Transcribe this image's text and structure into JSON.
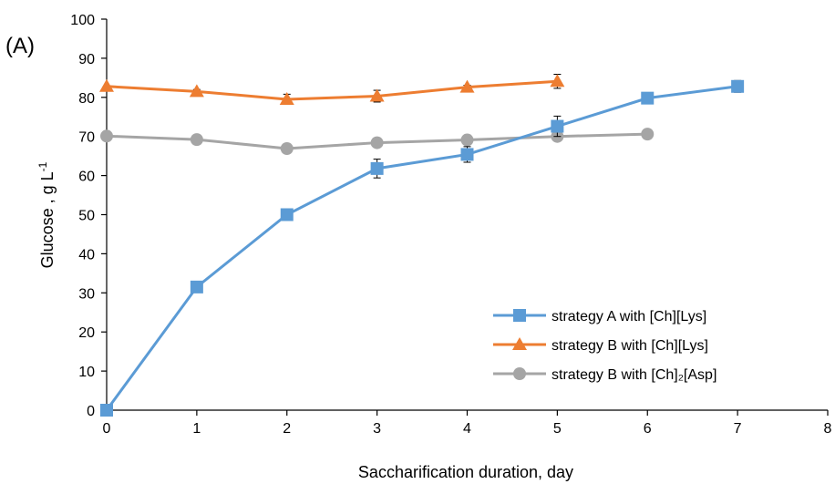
{
  "panel_label": "(A)",
  "chart_data": {
    "type": "line",
    "xlabel": "Saccharification duration, day",
    "ylabel_main": "Glucose , g L",
    "ylabel_sup": "-1",
    "xlim": [
      0,
      8
    ],
    "ylim": [
      0,
      100
    ],
    "xticks": [
      0,
      1,
      2,
      3,
      4,
      5,
      6,
      7,
      8
    ],
    "yticks": [
      0,
      10,
      20,
      30,
      40,
      50,
      60,
      70,
      80,
      90,
      100
    ],
    "grid": false,
    "legend_position": "bottom-right",
    "series": [
      {
        "name": "strategy A with [Ch][Lys]",
        "marker": "square",
        "color": "#5B9BD5",
        "x": [
          0,
          1,
          2,
          3,
          4,
          5,
          6,
          7
        ],
        "y": [
          0,
          31.5,
          50,
          61.8,
          65.4,
          72.6,
          79.8,
          82.8
        ],
        "err": [
          0,
          0.8,
          0.8,
          2.4,
          2.0,
          2.6,
          0.5,
          1.5
        ]
      },
      {
        "name": "strategy B with [Ch][Lys]",
        "marker": "triangle",
        "color": "#ED7D31",
        "x": [
          0,
          1,
          2,
          3,
          4,
          5
        ],
        "y": [
          82.8,
          81.5,
          79.5,
          80.3,
          82.6,
          84.1
        ],
        "err": [
          0,
          0.5,
          1.3,
          1.5,
          0.5,
          1.8
        ]
      },
      {
        "name": "strategy B with [Ch]₂[Asp]",
        "marker": "circle",
        "color": "#A5A5A5",
        "x": [
          0,
          1,
          2,
          3,
          4,
          5,
          6
        ],
        "y": [
          70.1,
          69.2,
          66.9,
          68.4,
          69.1,
          70.0,
          70.6
        ],
        "err": [
          0,
          0.4,
          0.3,
          0.5,
          0.4,
          0.4,
          0.4
        ]
      }
    ]
  }
}
